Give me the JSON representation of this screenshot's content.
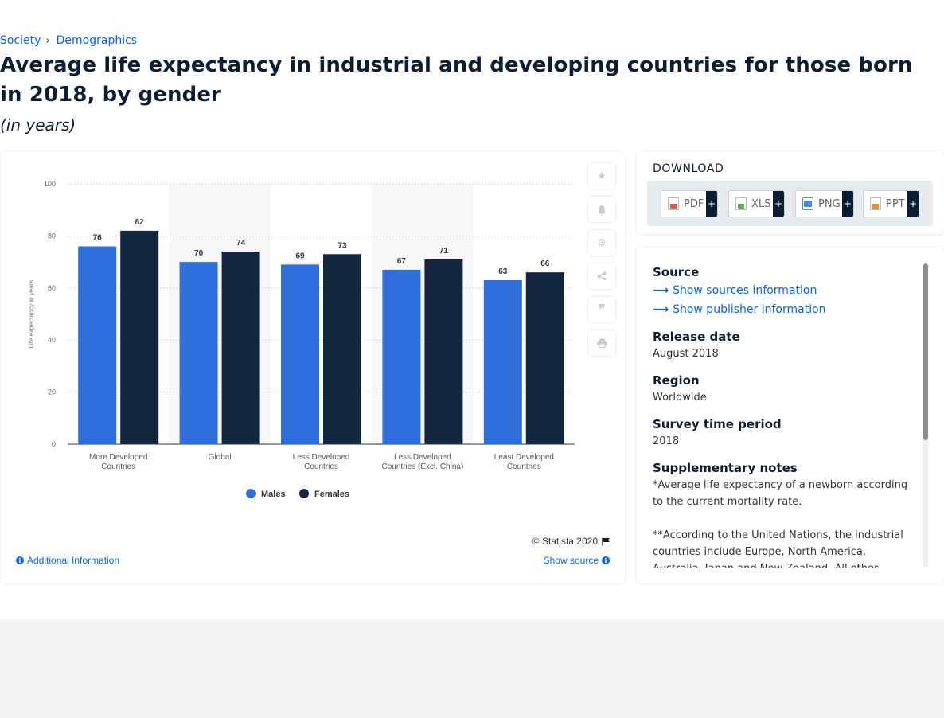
{
  "breadcrumb": {
    "items": [
      "Society",
      "Demographics"
    ],
    "separator": "›"
  },
  "title": "Average life expectancy in industrial and developing countries for those born in 2018, by gender",
  "subtitle": "(in years)",
  "chart_data": {
    "type": "bar",
    "categories": [
      [
        "More Developed",
        "Countries"
      ],
      [
        "Global"
      ],
      [
        "Less Developed",
        "Countries"
      ],
      [
        "Less Developed",
        "Countries (Excl. China)"
      ],
      [
        "Least Developed",
        "Countries"
      ]
    ],
    "series": [
      {
        "name": "Males",
        "values": [
          76,
          70,
          69,
          67,
          63
        ],
        "color": "#2f6fdc"
      },
      {
        "name": "Females",
        "values": [
          82,
          74,
          73,
          71,
          66
        ],
        "color": "#13263f"
      }
    ],
    "ylabel": "Life expectancy in years",
    "xlabel": "",
    "ylim": [
      0,
      100
    ],
    "yticks": [
      0,
      20,
      40,
      60,
      80,
      100
    ],
    "grid": true,
    "legend": "bottom"
  },
  "toolbar": {
    "icons": [
      "star-icon",
      "bell-icon",
      "gear-icon",
      "share-icon",
      "quote-icon",
      "print-icon"
    ]
  },
  "footer": {
    "credit": "© Statista 2020",
    "additional_info": "Additional Information",
    "show_source": "Show source"
  },
  "download": {
    "title": "DOWNLOAD",
    "buttons": [
      {
        "label": "PDF",
        "color": "#e05a4f"
      },
      {
        "label": "XLS",
        "color": "#5fae4a"
      },
      {
        "label": "PNG",
        "color": "#3e8de0"
      },
      {
        "label": "PPT",
        "color": "#f28c28"
      }
    ],
    "plus": "+"
  },
  "source": {
    "heading": "Source",
    "links": [
      "Show sources information",
      "Show publisher information"
    ],
    "release_label": "Release date",
    "release_value": "August 2018",
    "region_label": "Region",
    "region_value": "Worldwide",
    "survey_label": "Survey time period",
    "survey_value": "2018",
    "notes_label": "Supplementary notes",
    "note1": "*Average life expectancy of a newborn according to the current mortality rate.",
    "note2": "**According to the United Nations, the industrial countries include Europe, North America, Australia, Japan and New Zealand. All other countries and"
  }
}
